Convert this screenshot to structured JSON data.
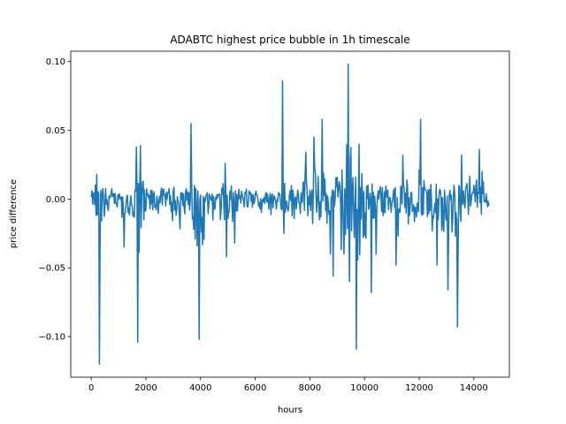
{
  "chart_data": {
    "type": "line",
    "title": "ADABTC highest price bubble in 1h timescale",
    "xlabel": "hours",
    "ylabel": "price difference",
    "xlim": [
      -750,
      15300
    ],
    "ylim": [
      -0.1295,
      0.1075
    ],
    "grid": false,
    "x_ticks": [
      0,
      2000,
      4000,
      6000,
      8000,
      10000,
      12000,
      14000
    ],
    "x_tick_labels": [
      "0",
      "2000",
      "4000",
      "6000",
      "8000",
      "10000",
      "12000",
      "14000"
    ],
    "y_ticks": [
      -0.1,
      -0.05,
      0.0,
      0.05,
      0.1
    ],
    "y_tick_labels": [
      "−0.10",
      "−0.05",
      "0.00",
      "0.05",
      "0.10"
    ],
    "series": [
      {
        "color": "#1f77b4",
        "n_points": 14550,
        "envelope_upper": [
          [
            0,
            0.012
          ],
          [
            200,
            0.018
          ],
          [
            500,
            0.013
          ],
          [
            1000,
            0.012
          ],
          [
            1500,
            0.011
          ],
          [
            1700,
            0.039
          ],
          [
            1800,
            0.039
          ],
          [
            2000,
            0.015
          ],
          [
            2500,
            0.016
          ],
          [
            3000,
            0.017
          ],
          [
            3300,
            0.024
          ],
          [
            3500,
            0.016
          ],
          [
            3650,
            0.055
          ],
          [
            3800,
            0.018
          ],
          [
            4000,
            0.01
          ],
          [
            4500,
            0.008
          ],
          [
            4900,
            0.026
          ],
          [
            5200,
            0.016
          ],
          [
            5500,
            0.018
          ],
          [
            6000,
            0.014
          ],
          [
            6500,
            0.012
          ],
          [
            6900,
            0.02
          ],
          [
            7000,
            0.086
          ],
          [
            7100,
            0.024
          ],
          [
            7400,
            0.022
          ],
          [
            7800,
            0.034
          ],
          [
            8100,
            0.025
          ],
          [
            8400,
            0.058
          ],
          [
            8600,
            0.026
          ],
          [
            9000,
            0.028
          ],
          [
            9400,
            0.098
          ],
          [
            9700,
            0.045
          ],
          [
            10000,
            0.022
          ],
          [
            10400,
            0.025
          ],
          [
            11000,
            0.023
          ],
          [
            11500,
            0.027
          ],
          [
            12000,
            0.058
          ],
          [
            12300,
            0.025
          ],
          [
            12800,
            0.02
          ],
          [
            13000,
            0.024
          ],
          [
            13500,
            0.03
          ],
          [
            14000,
            0.024
          ],
          [
            14200,
            0.036
          ],
          [
            14550,
            0.01
          ]
        ],
        "envelope_lower": [
          [
            0,
            -0.018
          ],
          [
            200,
            -0.027
          ],
          [
            300,
            -0.12
          ],
          [
            500,
            -0.02
          ],
          [
            1000,
            -0.018
          ],
          [
            1200,
            -0.035
          ],
          [
            1500,
            -0.022
          ],
          [
            1700,
            -0.104
          ],
          [
            2000,
            -0.025
          ],
          [
            2500,
            -0.022
          ],
          [
            2800,
            -0.03
          ],
          [
            3300,
            -0.026
          ],
          [
            3600,
            -0.018
          ],
          [
            3950,
            -0.102
          ],
          [
            4300,
            -0.015
          ],
          [
            4900,
            -0.042
          ],
          [
            5200,
            -0.03
          ],
          [
            5500,
            -0.022
          ],
          [
            6000,
            -0.016
          ],
          [
            6500,
            -0.015
          ],
          [
            7000,
            -0.025
          ],
          [
            7400,
            -0.032
          ],
          [
            7800,
            -0.03
          ],
          [
            8300,
            -0.03
          ],
          [
            8800,
            -0.055
          ],
          [
            9400,
            -0.06
          ],
          [
            9700,
            -0.109
          ],
          [
            10300,
            -0.068
          ],
          [
            10700,
            -0.03
          ],
          [
            11100,
            -0.048
          ],
          [
            11500,
            -0.035
          ],
          [
            12000,
            -0.029
          ],
          [
            12600,
            -0.04
          ],
          [
            13000,
            -0.066
          ],
          [
            13400,
            -0.093
          ],
          [
            13600,
            -0.032
          ],
          [
            14000,
            -0.022
          ],
          [
            14200,
            -0.022
          ],
          [
            14550,
            -0.01
          ]
        ],
        "spikes": [
          [
            200,
            0.018
          ],
          [
            300,
            -0.12
          ],
          [
            1200,
            -0.035
          ],
          [
            1650,
            0.038
          ],
          [
            1700,
            -0.104
          ],
          [
            1800,
            0.039
          ],
          [
            3650,
            0.055
          ],
          [
            3950,
            -0.102
          ],
          [
            4900,
            0.026
          ],
          [
            4950,
            -0.042
          ],
          [
            5250,
            -0.032
          ],
          [
            7000,
            0.086
          ],
          [
            7050,
            -0.025
          ],
          [
            7850,
            0.034
          ],
          [
            8150,
            0.045
          ],
          [
            8450,
            0.058
          ],
          [
            8750,
            -0.04
          ],
          [
            8850,
            -0.056
          ],
          [
            9250,
            -0.04
          ],
          [
            9400,
            0.098
          ],
          [
            9450,
            -0.06
          ],
          [
            9700,
            -0.109
          ],
          [
            9800,
            0.04
          ],
          [
            10250,
            -0.068
          ],
          [
            11150,
            -0.048
          ],
          [
            11400,
            0.032
          ],
          [
            12050,
            0.058
          ],
          [
            12650,
            -0.048
          ],
          [
            13050,
            -0.066
          ],
          [
            13400,
            -0.093
          ],
          [
            13550,
            0.032
          ],
          [
            14200,
            0.036
          ]
        ]
      }
    ]
  }
}
